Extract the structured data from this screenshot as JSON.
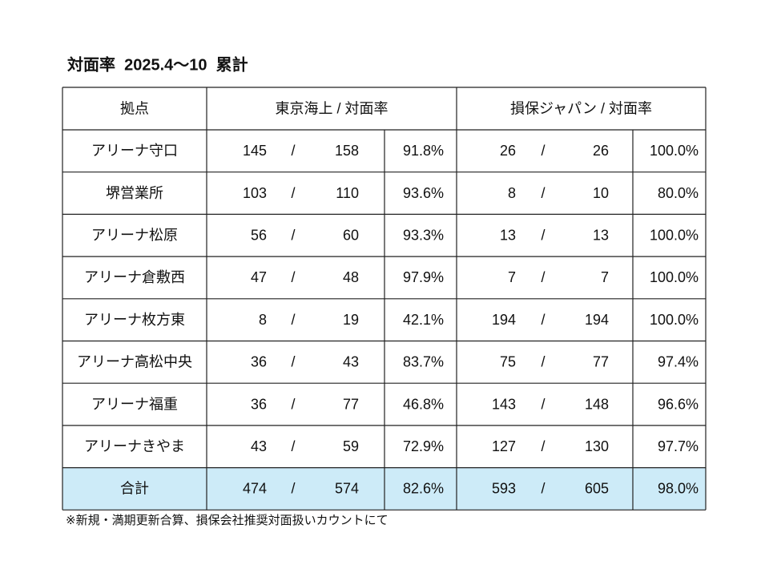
{
  "title": "対面率  2025.4～10  累計",
  "table": {
    "header": [
      "拠点",
      "東京海上 / 対面率",
      "損保ジャパン / 対面率"
    ],
    "separator": "/",
    "rows": [
      [
        "アリーナ守口",
        145,
        158,
        "91.8%",
        26,
        26,
        "100.0%"
      ],
      [
        "堺営業所",
        103,
        110,
        "93.6%",
        8,
        10,
        "80.0%"
      ],
      [
        "アリーナ松原",
        56,
        60,
        "93.3%",
        13,
        13,
        "100.0%"
      ],
      [
        "アリーナ倉敷西",
        47,
        48,
        "97.9%",
        7,
        7,
        "100.0%"
      ],
      [
        "アリーナ枚方東",
        8,
        19,
        "42.1%",
        194,
        194,
        "100.0%"
      ],
      [
        "アリーナ高松中央",
        36,
        43,
        "83.7%",
        75,
        77,
        "97.4%"
      ],
      [
        "アリーナ福重",
        36,
        77,
        "46.8%",
        143,
        148,
        "96.6%"
      ],
      [
        "アリーナきやま",
        43,
        59,
        "72.9%",
        127,
        130,
        "97.7%"
      ],
      [
        "合計",
        474,
        574,
        "82.6%",
        593,
        605,
        "98.0%"
      ]
    ],
    "footnote": "※新規・満期更新合算、損保会社推奨対面扱いカウントにて"
  }
}
